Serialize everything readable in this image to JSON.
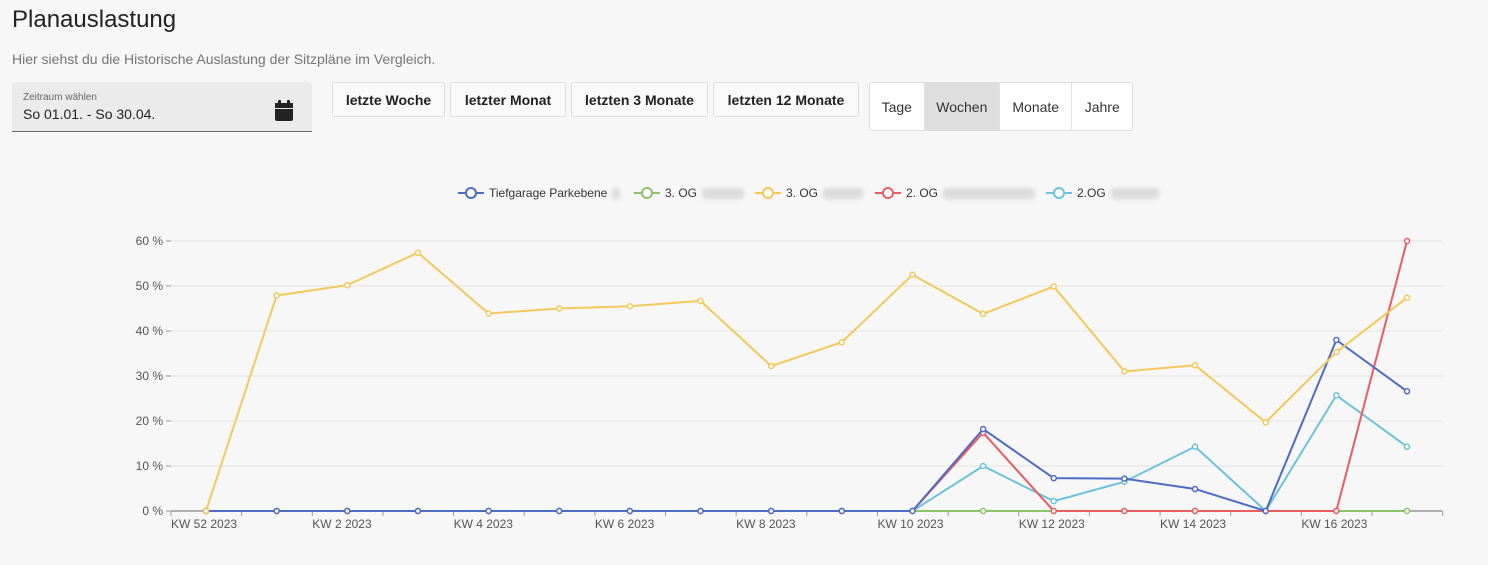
{
  "page": {
    "title": "Planauslastung",
    "subtitle": "Hier siehst du die Historische Auslastung der Sitzpläne im Vergleich."
  },
  "date_picker": {
    "label": "Zeitraum wählen",
    "value": "So 01.01. - So 30.04.",
    "icon": "calendar-icon"
  },
  "range_buttons": [
    "letzte Woche",
    "letzter Monat",
    "letzten 3 Monate",
    "letzten 12 Monate"
  ],
  "granularity": {
    "options": [
      "Tage",
      "Wochen",
      "Monate",
      "Jahre"
    ],
    "selected": "Wochen"
  },
  "colors": {
    "blue": "#4e6bc5",
    "green": "#8cc36b",
    "yellow": "#f3c95c",
    "red": "#e85c62",
    "cyan": "#6fc2dc"
  },
  "chart_data": {
    "type": "line",
    "ylim": [
      0,
      60
    ],
    "y_ticks": [
      "0 %",
      "10 %",
      "20 %",
      "30 %",
      "40 %",
      "50 %",
      "60 %"
    ],
    "x_tick_labels": [
      "KW 52 2023",
      "KW 2 2023",
      "KW 4 2023",
      "KW 6 2023",
      "KW 8 2023",
      "KW 10 2023",
      "KW 12 2023",
      "KW 14 2023",
      "KW 16 2023"
    ],
    "x": [
      "KW 52 2023",
      "KW 1 2023",
      "KW 2 2023",
      "KW 3 2023",
      "KW 4 2023",
      "KW 5 2023",
      "KW 6 2023",
      "KW 7 2023",
      "KW 8 2023",
      "KW 9 2023",
      "KW 10 2023",
      "KW 11 2023",
      "KW 12 2023",
      "KW 13 2023",
      "KW 14 2023",
      "KW 15 2023",
      "KW 16 2023",
      "KW 17 2023"
    ],
    "legend_position": "top-center",
    "grid": true,
    "series": [
      {
        "name": "Tiefgarage Parkebene",
        "color": "#4e6bc5",
        "values": [
          0,
          0,
          0,
          0,
          0,
          0,
          0,
          0,
          0,
          0,
          0,
          18.2,
          7.3,
          7.2,
          4.9,
          0,
          38,
          26.6
        ]
      },
      {
        "name": "3. OG",
        "color": "#8cc36b",
        "values": [
          0,
          0,
          0,
          0,
          0,
          0,
          0,
          0,
          0,
          0,
          0,
          0,
          0,
          0,
          0,
          0,
          0,
          0
        ]
      },
      {
        "name": "3. OG",
        "color": "#f3c95c",
        "values": [
          0,
          47.9,
          50.2,
          57.4,
          43.9,
          45,
          45.5,
          46.7,
          32.2,
          37.5,
          52.5,
          43.8,
          49.9,
          31,
          32.4,
          19.7,
          35.3,
          47.4
        ]
      },
      {
        "name": "2. OG",
        "color": "#e85c62",
        "values": [
          0,
          0,
          0,
          0,
          0,
          0,
          0,
          0,
          0,
          0,
          0,
          17.4,
          0,
          0,
          0,
          0,
          0,
          60
        ]
      },
      {
        "name": "2.OG",
        "color": "#6fc2dc",
        "values": [
          0,
          0,
          0,
          0,
          0,
          0,
          0,
          0,
          0,
          0,
          0,
          10,
          2.2,
          6.5,
          14.3,
          0,
          25.7,
          14.3
        ]
      }
    ]
  }
}
